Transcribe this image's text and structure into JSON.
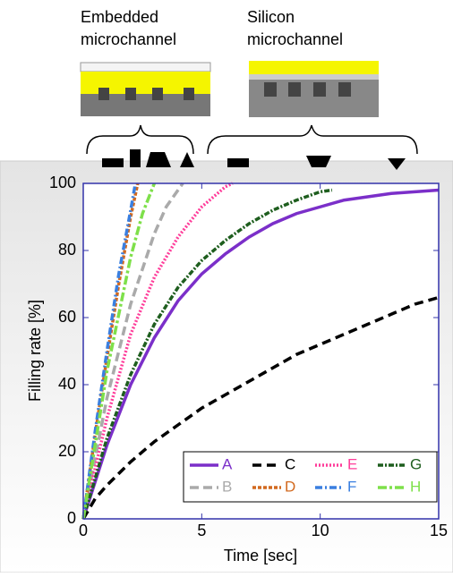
{
  "chart_data": {
    "type": "line",
    "x_label": "Time [sec]",
    "y_label": "Filling rate [%]",
    "annotations": [
      [
        "Embedded",
        "microchannel"
      ],
      [
        "Silicon",
        "microchannel"
      ]
    ],
    "xlim": [
      0,
      15
    ],
    "xticks": [
      0,
      5,
      10,
      15
    ],
    "ylim": [
      0,
      100
    ],
    "yticks": [
      0,
      20,
      40,
      60,
      80,
      100
    ],
    "grid": false,
    "legend": "lower right",
    "series": [
      {
        "name": "A",
        "color": "#7b2fc9",
        "dash": "solid",
        "x": [
          0,
          1,
          2,
          3,
          4,
          5,
          6,
          7,
          8,
          9,
          10,
          11,
          12,
          13,
          14,
          15
        ],
        "values": [
          0,
          22,
          40,
          54,
          65,
          73,
          79,
          84,
          88,
          91,
          93,
          95,
          96,
          97,
          97.5,
          98
        ]
      },
      {
        "name": "B",
        "color": "#aaaaaa",
        "dash": "10,5",
        "x": [
          0,
          1,
          2,
          3,
          3.5,
          4,
          4.2
        ],
        "values": [
          0,
          36,
          64,
          85,
          93,
          98,
          100
        ]
      },
      {
        "name": "C",
        "color": "#000000",
        "dash": "10,6",
        "x": [
          0,
          0.5,
          1,
          2,
          3,
          4,
          5,
          6,
          7,
          8,
          9,
          10,
          11,
          12,
          13,
          14,
          15
        ],
        "values": [
          0,
          6,
          10,
          17,
          23,
          28,
          33,
          37,
          41,
          45,
          49,
          52,
          55,
          58,
          61,
          64,
          66
        ]
      },
      {
        "name": "D",
        "color": "#d2691e",
        "dash": "4,2",
        "x": [
          0,
          0.5,
          1,
          1.5,
          2,
          2.3
        ],
        "values": [
          0,
          25,
          48,
          70,
          90,
          100
        ]
      },
      {
        "name": "E",
        "color": "#ff3d9a",
        "dash": "2,2",
        "x": [
          0,
          1,
          2,
          3,
          4,
          5,
          5.5,
          6,
          6.3
        ],
        "values": [
          0,
          30,
          55,
          72,
          84,
          93,
          96,
          99,
          100
        ]
      },
      {
        "name": "F",
        "color": "#3a7fe0",
        "dash": "8,3,2,3",
        "x": [
          0,
          0.5,
          1,
          1.5,
          2,
          2.2
        ],
        "values": [
          0,
          26,
          50,
          73,
          92,
          100
        ]
      },
      {
        "name": "G",
        "color": "#1e5e1e",
        "dash": "6,2,2,2",
        "x": [
          0,
          1,
          2,
          3,
          4,
          5,
          6,
          7,
          8,
          9,
          10,
          10.5
        ],
        "values": [
          0,
          24,
          43,
          58,
          69,
          77,
          83,
          88,
          92,
          95,
          97.5,
          98
        ]
      },
      {
        "name": "H",
        "color": "#7ee04a",
        "dash": "10,3,3,3",
        "x": [
          0,
          1,
          2,
          2.5,
          3
        ],
        "values": [
          0,
          44,
          78,
          91,
          100
        ]
      }
    ]
  }
}
